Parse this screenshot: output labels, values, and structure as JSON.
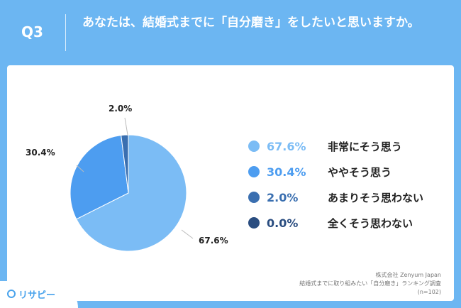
{
  "header": {
    "q_number": "Q3",
    "question": "あなたは、結婚式までに「自分磨き」をしたいと思いますか。"
  },
  "chart_data": {
    "type": "pie",
    "title": "",
    "slices": [
      {
        "label": "非常にそう思う",
        "value": 67.6,
        "display": "67.6%",
        "color": "#7bbcf5"
      },
      {
        "label": "ややそう思う",
        "value": 30.4,
        "display": "30.4%",
        "color": "#4d9df0"
      },
      {
        "label": "あまりそう思わない",
        "value": 2.0,
        "display": "2.0%",
        "color": "#3a6fb0"
      },
      {
        "label": "全くそう思わない",
        "value": 0.0,
        "display": "0.0%",
        "color": "#2a4d80"
      }
    ],
    "legend_position": "right"
  },
  "legend_colors": {
    "pct_text_1": "#7bbcf5",
    "pct_text_2": "#4d9df0",
    "pct_text_3": "#3a6fb0",
    "pct_text_4": "#2a4d80"
  },
  "credits": {
    "line1": "株式会社 Zenyum Japan",
    "line2": "結婚式までに取り組みたい「自分磨き」ランキング調査",
    "line3": "(n=102)"
  },
  "logo": {
    "text": "リサピー"
  }
}
